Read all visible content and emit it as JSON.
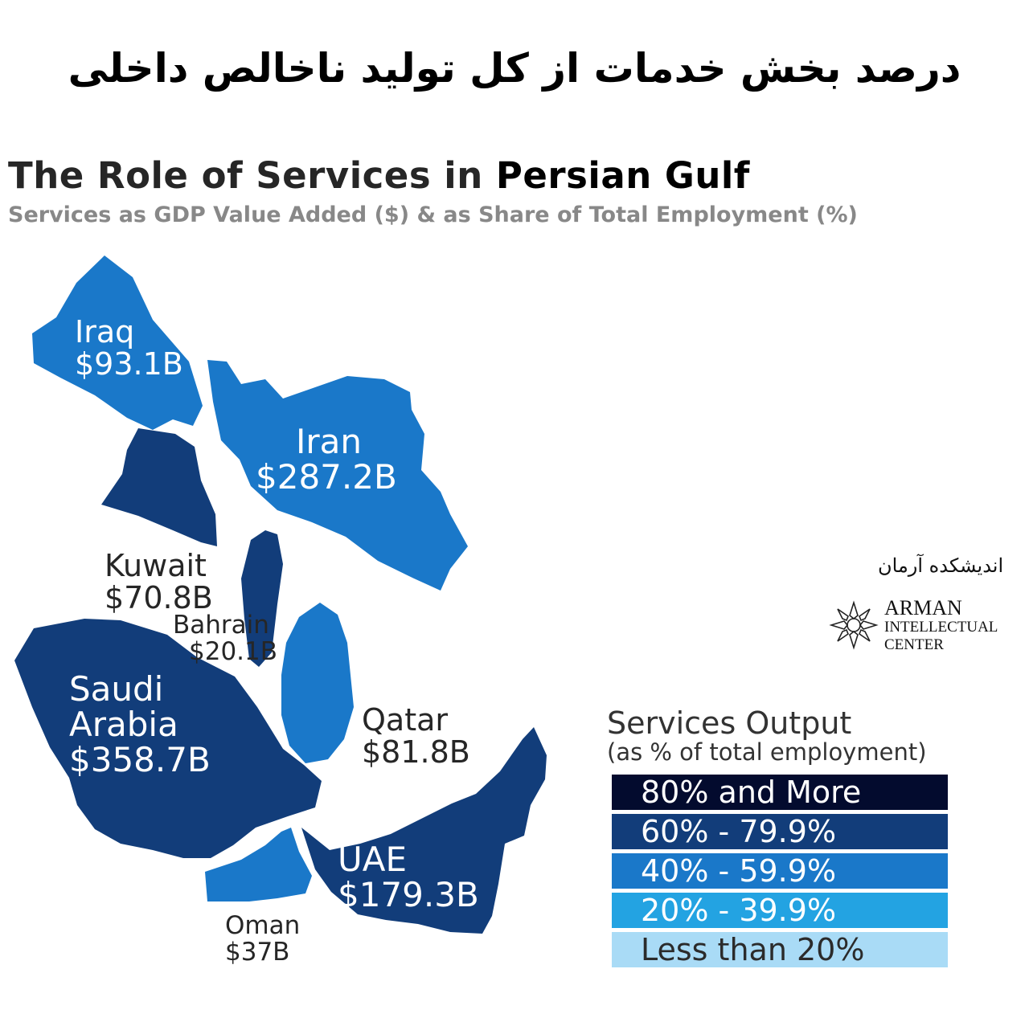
{
  "header": {
    "persian_title": "درصد بخش خدمات از کل تولید ناخالص داخلی",
    "title_main": "The Role of Services in ",
    "title_accent": "Persian Gulf",
    "subtitle": "Services as GDP Value Added ($) & as Share of Total Employment (%)"
  },
  "colors": {
    "band_80_plus": "#030b2e",
    "band_60_79": "#123d7a",
    "band_40_59": "#1a78c9",
    "band_20_39": "#23a3e2",
    "band_below_20": "#a9dbf6"
  },
  "countries": [
    {
      "name": "Iraq",
      "value": "$93.1B",
      "band": "40% - 59.9%"
    },
    {
      "name": "Iran",
      "value": "$287.2B",
      "band": "40% - 59.9%"
    },
    {
      "name": "Kuwait",
      "value": "$70.8B",
      "band": "60% - 79.9%"
    },
    {
      "name": "Bahrain",
      "value": "$20.1B",
      "band": "60% - 79.9%"
    },
    {
      "name_line1": "Saudi",
      "name_line2": "Arabia",
      "value": "$358.7B",
      "band": "60% - 79.9%"
    },
    {
      "name": "Qatar",
      "value": "$81.8B",
      "band": "40% - 59.9%"
    },
    {
      "name": "UAE",
      "value": "$179.3B",
      "band": "60% - 79.9%"
    },
    {
      "name": "Oman",
      "value": "$37B",
      "band": "40% - 59.9%"
    }
  ],
  "legend": {
    "title": "Services Output",
    "subtitle": "(as % of total employment)",
    "items": [
      {
        "label": "80% and More",
        "color": "#030b2e",
        "text_color": "#ffffff"
      },
      {
        "label": "60% - 79.9%",
        "color": "#123d7a",
        "text_color": "#ffffff"
      },
      {
        "label": "40% - 59.9%",
        "color": "#1a78c9",
        "text_color": "#ffffff"
      },
      {
        "label": "20% - 39.9%",
        "color": "#23a3e2",
        "text_color": "#ffffff"
      },
      {
        "label": "Less than 20%",
        "color": "#a9dbf6",
        "text_color": "#2b2b2b"
      }
    ]
  },
  "logo": {
    "persian_name": "اندیشکده آرمان",
    "line1": "ARMAN",
    "line2": "INTELLECTUAL",
    "line3": "CENTER"
  }
}
